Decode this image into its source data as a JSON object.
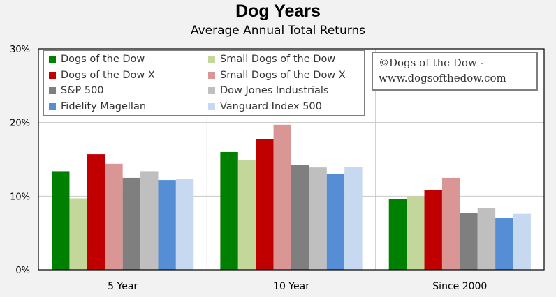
{
  "chart_data": {
    "type": "bar",
    "title": "Dog Years",
    "subtitle": "Average Annual Total Returns",
    "categories": [
      "5 Year",
      "10 Year",
      "Since 2000"
    ],
    "yticks": [
      "0%",
      "10%",
      "20%",
      "30%"
    ],
    "ylim": [
      0,
      30
    ],
    "grid": true,
    "legend_position": "top-left",
    "series": [
      {
        "name": "Dogs of the Dow",
        "color": "#008000",
        "values": [
          13.4,
          16.0,
          9.6
        ]
      },
      {
        "name": "Small Dogs of the Dow",
        "color": "#c4d79b",
        "values": [
          9.7,
          14.9,
          10.0
        ]
      },
      {
        "name": "Dogs of the Dow X",
        "color": "#c00000",
        "values": [
          15.7,
          17.7,
          10.8
        ]
      },
      {
        "name": "Small Dogs of the Dow X",
        "color": "#da9694",
        "values": [
          14.4,
          19.7,
          12.5
        ]
      },
      {
        "name": "S&P 500",
        "color": "#7f7f7f",
        "values": [
          12.5,
          14.2,
          7.7
        ]
      },
      {
        "name": "Dow Jones Industrials",
        "color": "#bfbfbf",
        "values": [
          13.4,
          13.9,
          8.4
        ]
      },
      {
        "name": "Fidelity Magellan",
        "color": "#558ed5",
        "values": [
          12.2,
          13.0,
          7.1
        ]
      },
      {
        "name": "Vanguard Index 500",
        "color": "#c6d9f1",
        "values": [
          12.3,
          14.0,
          7.6
        ]
      }
    ],
    "annotation": [
      "©Dogs of the Dow -",
      "www.dogsofthedow.com"
    ]
  }
}
